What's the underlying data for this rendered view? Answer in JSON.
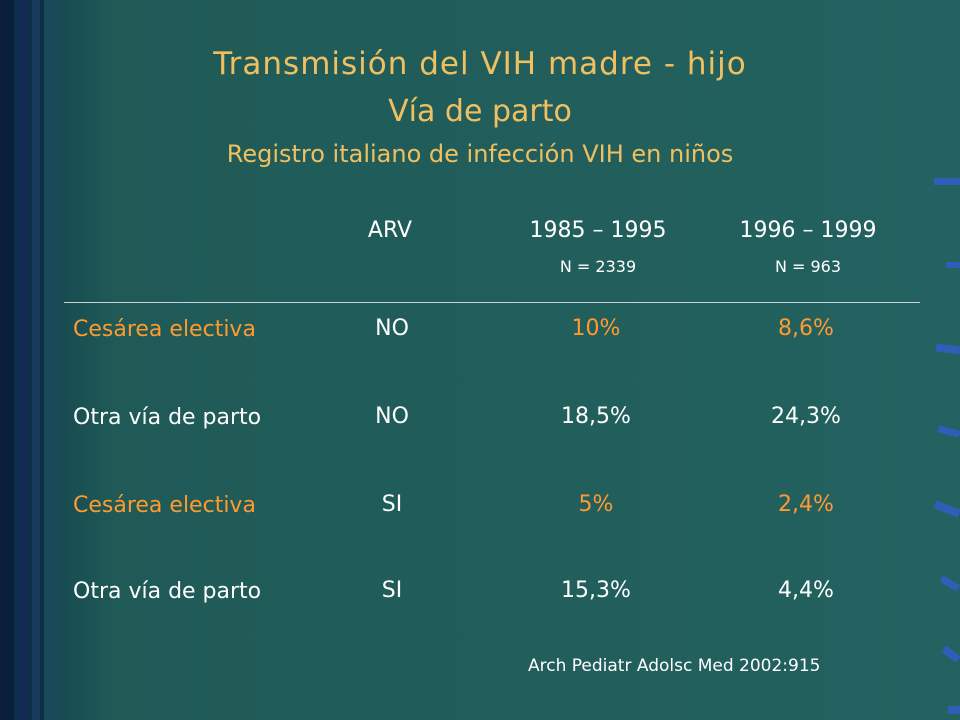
{
  "slide": {
    "title_line1": "Transmisión del VIH madre - hijo",
    "title_line2": "Vía de parto",
    "subtitle": "Registro italiano de infección VIH en niños",
    "colors": {
      "title": "#f0c060",
      "highlight": "#ff9a2e",
      "text": "#ffffff",
      "background": "#1f5a57"
    }
  },
  "table": {
    "headers": {
      "arv": "ARV",
      "period1": "1985 – 1995",
      "period1_n": "N = 2339",
      "period2": "1996 – 1999",
      "period2_n": "N = 963"
    },
    "rows": [
      {
        "label": "Cesárea electiva",
        "arv": "NO",
        "p1": "10%",
        "p2": "8,6%",
        "highlight": true
      },
      {
        "label": "Otra vía de parto",
        "arv": "NO",
        "p1": "18,5%",
        "p2": "24,3%",
        "highlight": false
      },
      {
        "label": "Cesárea electiva",
        "arv": "SI",
        "p1": "5%",
        "p2": "2,4%",
        "highlight": true
      },
      {
        "label": "Otra vía de parto",
        "arv": "SI",
        "p1": "15,3%",
        "p2": "4,4%",
        "highlight": false
      }
    ]
  },
  "citation": "Arch Pediatr Adolsc Med 2002:915"
}
